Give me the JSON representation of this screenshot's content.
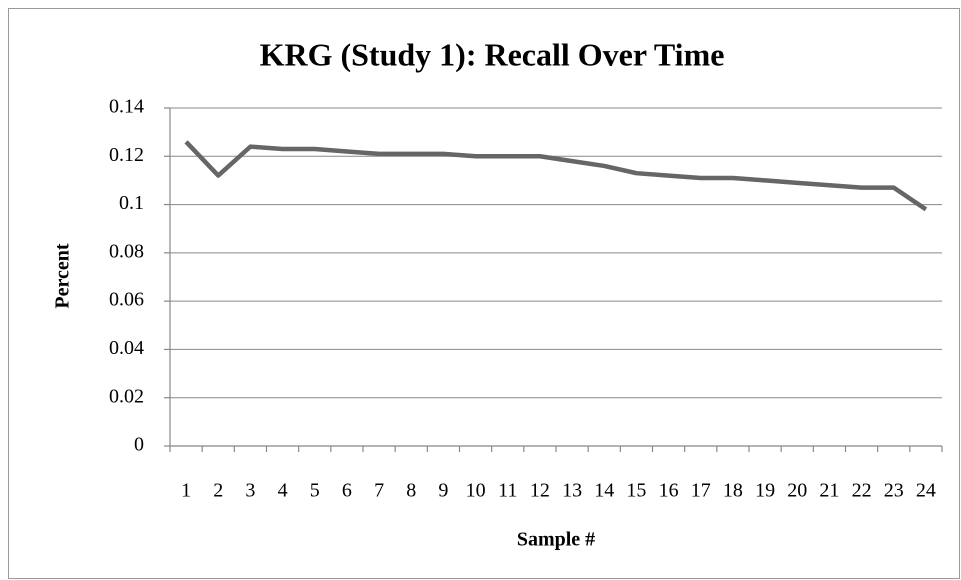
{
  "chart_data": {
    "type": "line",
    "title": "KRG (Study 1): Recall Over Time",
    "x_label": "Sample #",
    "y_label": "Percent",
    "categories": [
      "1",
      "2",
      "3",
      "4",
      "5",
      "6",
      "7",
      "8",
      "9",
      "10",
      "11",
      "12",
      "13",
      "14",
      "15",
      "16",
      "17",
      "18",
      "19",
      "20",
      "21",
      "22",
      "23",
      "24"
    ],
    "series": [
      {
        "name": "Recall",
        "color": "#666666",
        "values": [
          0.126,
          0.112,
          0.124,
          0.123,
          0.123,
          0.122,
          0.121,
          0.121,
          0.121,
          0.12,
          0.12,
          0.12,
          0.118,
          0.116,
          0.113,
          0.112,
          0.111,
          0.111,
          0.11,
          0.109,
          0.108,
          0.107,
          0.107,
          0.098
        ]
      }
    ],
    "ylim": [
      0,
      0.14
    ],
    "yticks": [
      0,
      0.02,
      0.04,
      0.06,
      0.08,
      0.1,
      0.12,
      0.14
    ],
    "grid": true
  }
}
